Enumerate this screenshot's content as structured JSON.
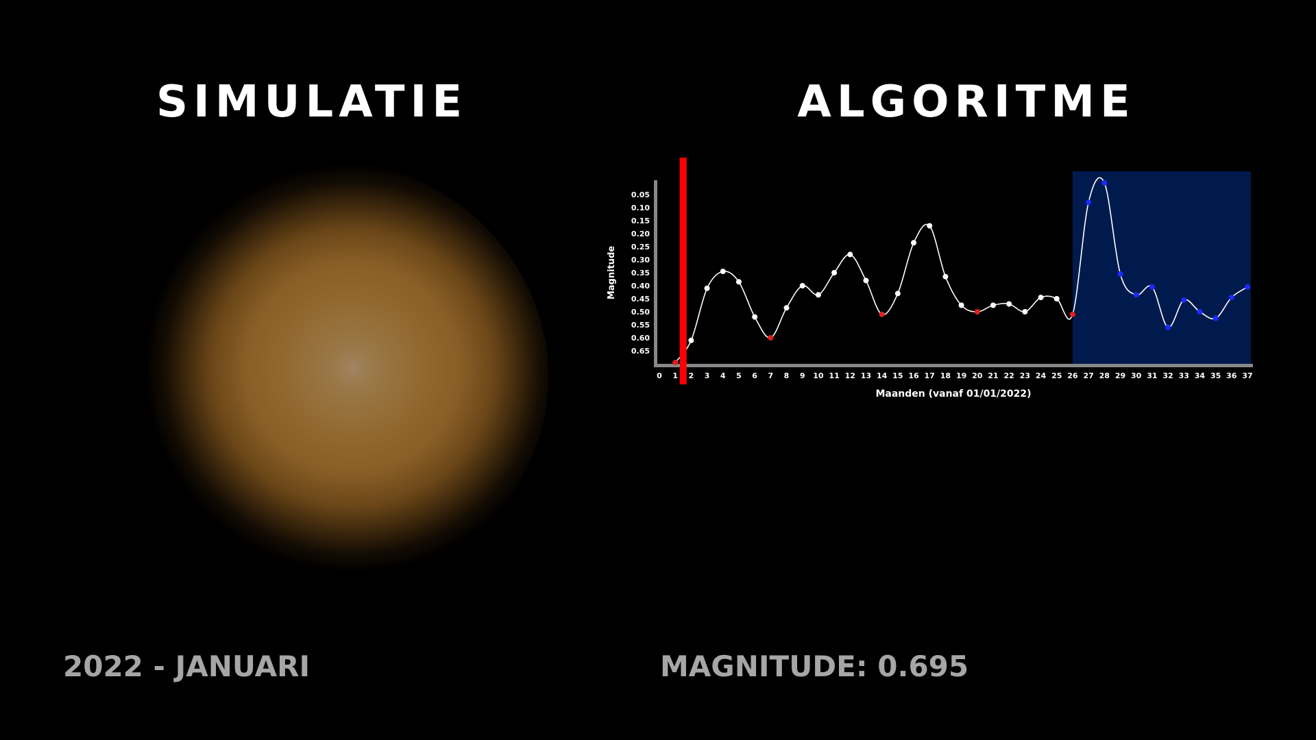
{
  "left_title": "SIMULATIE",
  "right_title": "ALGORITME",
  "date_label": "2022 - JANUARI",
  "magnitude_label": "MAGNITUDE: 0.695",
  "colors": {
    "background": "#000000",
    "star_glow": "#9a7040",
    "footer_text": "#a6a6a6",
    "marker": "#ff0000",
    "forecast_region": "#001a4d",
    "forecast_points": "#1a2bff",
    "local_minima_points": "#e02020",
    "line": "#ffffff"
  },
  "chart_data": {
    "type": "line",
    "title": "",
    "xlabel": "Maanden (vanaf 01/01/2022)",
    "ylabel": "Magnitude",
    "x_ticks": [
      0,
      1,
      2,
      3,
      4,
      5,
      6,
      7,
      8,
      9,
      10,
      11,
      12,
      13,
      14,
      15,
      16,
      17,
      18,
      19,
      20,
      21,
      22,
      23,
      24,
      25,
      26,
      27,
      28,
      29,
      30,
      31,
      32,
      33,
      34,
      35,
      36,
      37
    ],
    "y_ticks": [
      "0.05",
      "0.10",
      "0.15",
      "0.20",
      "0.25",
      "0.30",
      "0.35",
      "0.40",
      "0.45",
      "0.50",
      "0.55",
      "0.60",
      "0.65"
    ],
    "xlim": [
      0,
      37
    ],
    "ylim": [
      0.0,
      0.7
    ],
    "y_inverted": true,
    "current_month_marker": 1.5,
    "forecast_start": 26,
    "series": [
      {
        "x": [
          1,
          2,
          3,
          4,
          5,
          6,
          7,
          8,
          9,
          10,
          11,
          12,
          13,
          14,
          15,
          16,
          17,
          18,
          19,
          20,
          21,
          22,
          23,
          24,
          25,
          26,
          27,
          28,
          29,
          30,
          31,
          32,
          33,
          34,
          35,
          36,
          37
        ],
        "y": [
          0.695,
          0.61,
          0.41,
          0.345,
          0.385,
          0.52,
          0.6,
          0.485,
          0.4,
          0.435,
          0.35,
          0.28,
          0.38,
          0.51,
          0.43,
          0.235,
          0.17,
          0.365,
          0.475,
          0.5,
          0.475,
          0.47,
          0.5,
          0.445,
          0.45,
          0.51,
          0.08,
          0.005,
          0.355,
          0.435,
          0.405,
          0.56,
          0.455,
          0.5,
          0.525,
          0.445,
          0.405
        ],
        "point_type": [
          "min",
          "normal",
          "normal",
          "normal",
          "normal",
          "normal",
          "min",
          "normal",
          "normal",
          "normal",
          "normal",
          "normal",
          "normal",
          "min",
          "normal",
          "normal",
          "normal",
          "normal",
          "normal",
          "min",
          "normal",
          "normal",
          "normal",
          "normal",
          "normal",
          "min",
          "forecast",
          "forecast",
          "forecast",
          "forecast",
          "forecast",
          "forecast",
          "forecast",
          "forecast",
          "forecast",
          "forecast",
          "forecast"
        ]
      }
    ]
  }
}
